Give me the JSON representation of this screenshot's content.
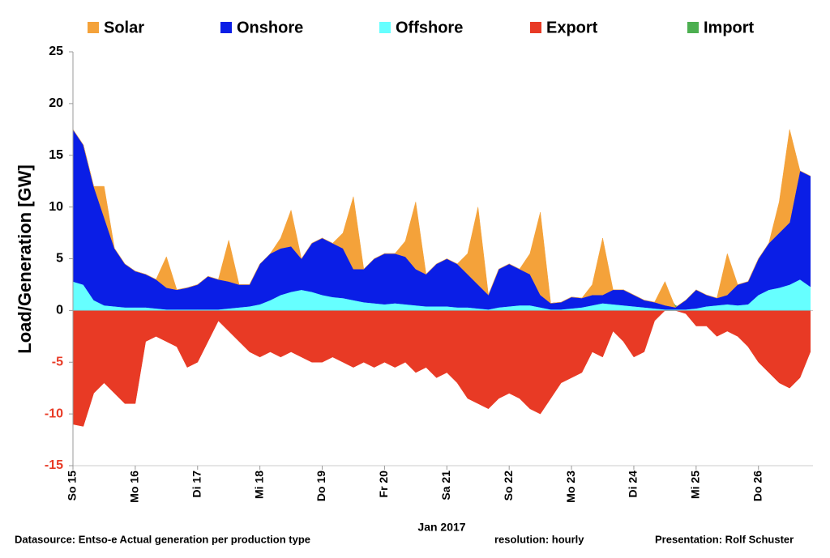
{
  "chart_data": {
    "type": "stacked_area",
    "y_label": "Load/Generation  [GW]",
    "x_label": "Jan 2017",
    "footer": [
      "Datasource: Entso-e  Actual generation per production type",
      "resolution: hourly",
      "Presentation:  Rolf Schuster"
    ],
    "x": [
      0,
      4,
      8,
      12,
      16,
      20,
      24,
      28,
      32,
      36,
      40,
      44,
      48,
      52,
      56,
      60,
      64,
      68,
      72,
      76,
      80,
      84,
      88,
      92,
      96,
      100,
      104,
      108,
      112,
      116,
      120,
      124,
      128,
      132,
      136,
      140,
      144,
      148,
      152,
      156,
      160,
      164,
      168,
      172,
      176,
      180,
      184,
      188,
      192,
      196,
      200,
      204,
      208,
      212,
      216,
      220,
      224,
      228,
      232,
      236,
      240,
      244,
      248,
      252,
      256,
      260,
      264,
      268,
      272,
      276,
      280,
      284
    ],
    "xlim": [
      0,
      285
    ],
    "xticks": [
      {
        "value": 0,
        "label": "So 15"
      },
      {
        "value": 24,
        "label": "Mo 16"
      },
      {
        "value": 48,
        "label": "Di 17"
      },
      {
        "value": 72,
        "label": "Mi 18"
      },
      {
        "value": 96,
        "label": "Do 19"
      },
      {
        "value": 120,
        "label": "Fr 20"
      },
      {
        "value": 144,
        "label": "Sa 21"
      },
      {
        "value": 168,
        "label": "So 22"
      },
      {
        "value": 192,
        "label": "Mo 23"
      },
      {
        "value": 216,
        "label": "Di 24"
      },
      {
        "value": 240,
        "label": "Mi 25"
      },
      {
        "value": 264,
        "label": "Do 26"
      }
    ],
    "ylim": [
      -15,
      25
    ],
    "yticks": [
      25,
      20,
      15,
      10,
      5,
      0,
      -5,
      -10,
      -15
    ],
    "negative_tick_color": "#e83a25",
    "series": [
      {
        "name": "Solar",
        "color": "#f4a23a",
        "stack": "gen",
        "values": [
          0,
          0,
          0,
          3,
          0,
          0,
          0,
          0,
          0,
          3,
          0,
          0,
          0,
          0,
          0,
          4,
          0,
          0,
          0,
          0,
          1,
          3.5,
          0,
          0,
          0,
          0,
          1.5,
          7,
          0,
          0,
          0,
          0,
          1.5,
          6.5,
          0,
          0,
          0,
          0,
          2,
          7.5,
          0,
          0,
          0,
          0,
          2,
          8,
          0,
          0,
          0,
          0,
          1,
          5.5,
          0,
          0,
          0,
          0,
          0,
          2.3,
          0,
          0,
          0,
          0,
          0,
          4,
          0,
          0,
          0,
          0,
          3,
          9,
          0,
          0
        ]
      },
      {
        "name": "Onshore",
        "color": "#0a1ee6",
        "stack": "gen",
        "values": [
          14.7,
          13.5,
          11,
          8.5,
          5.6,
          4.2,
          3.5,
          3.2,
          2.8,
          2.1,
          1.9,
          2.1,
          2.4,
          3.2,
          2.9,
          2.6,
          2.2,
          2.1,
          3.9,
          4.5,
          4.5,
          4.4,
          3,
          4.7,
          5.5,
          5.2,
          4.8,
          3,
          3.2,
          4.3,
          4.9,
          4.8,
          4.6,
          3.5,
          3.1,
          4.1,
          4.6,
          4.2,
          3.2,
          2.3,
          1.4,
          3.7,
          4.1,
          3.5,
          3,
          1.2,
          0.6,
          0.7,
          1.1,
          0.9,
          1,
          0.8,
          1.4,
          1.5,
          1.1,
          0.7,
          0.6,
          0.4,
          0.2,
          0.9,
          1.8,
          1.1,
          0.7,
          0.9,
          2,
          2.2,
          3.5,
          4.5,
          5.3,
          6,
          10.5,
          10.7
        ]
      },
      {
        "name": "Offshore",
        "color": "#66ffff",
        "stack": "gen",
        "values": [
          2.8,
          2.5,
          1,
          0.5,
          0.4,
          0.3,
          0.3,
          0.3,
          0.2,
          0.1,
          0.1,
          0.1,
          0.1,
          0.1,
          0.1,
          0.2,
          0.3,
          0.4,
          0.6,
          1,
          1.5,
          1.8,
          2,
          1.8,
          1.5,
          1.3,
          1.2,
          1,
          0.8,
          0.7,
          0.6,
          0.7,
          0.6,
          0.5,
          0.4,
          0.4,
          0.4,
          0.3,
          0.3,
          0.2,
          0.1,
          0.3,
          0.4,
          0.5,
          0.5,
          0.3,
          0.1,
          0.1,
          0.2,
          0.3,
          0.5,
          0.7,
          0.6,
          0.5,
          0.4,
          0.3,
          0.2,
          0.1,
          0.1,
          0.1,
          0.2,
          0.4,
          0.5,
          0.6,
          0.5,
          0.6,
          1.5,
          2,
          2.2,
          2.5,
          3,
          2.3
        ]
      },
      {
        "name": "Export",
        "color": "#e83a25",
        "stack": "exp",
        "values": [
          -11,
          -11.2,
          -8,
          -7,
          -8,
          -9,
          -9,
          -3,
          -2.5,
          -3,
          -3.5,
          -5.5,
          -5,
          -3,
          -1,
          -2,
          -3,
          -4,
          -4.5,
          -4,
          -4.5,
          -4,
          -4.5,
          -5,
          -5,
          -4.5,
          -5,
          -5.5,
          -5,
          -5.5,
          -5,
          -5.5,
          -5,
          -6,
          -5.5,
          -6.5,
          -6,
          -7,
          -8.5,
          -9,
          -9.5,
          -8.5,
          -8,
          -8.5,
          -9.5,
          -10,
          -8.5,
          -7,
          -6.5,
          -6,
          -4,
          -4.5,
          -2,
          -3,
          -4.5,
          -4,
          -1,
          0,
          0,
          -0.3,
          -1.5,
          -1.5,
          -2.5,
          -2,
          -2.5,
          -3.5,
          -5,
          -6,
          -7,
          -7.5,
          -6.5,
          -4
        ]
      },
      {
        "name": "Import",
        "color": "#4caf50",
        "stack": "imp",
        "values": [
          0,
          0,
          0,
          0,
          0,
          0,
          0,
          0,
          0,
          0,
          0,
          0,
          0,
          0,
          0,
          0,
          0,
          0,
          0,
          0,
          0,
          0,
          0,
          0,
          0,
          0,
          0,
          0,
          0,
          0,
          0,
          0,
          0,
          0,
          0,
          0,
          0,
          0,
          0,
          0,
          0,
          0,
          0,
          0,
          0,
          0,
          0,
          0,
          0,
          0,
          0,
          0,
          0,
          0,
          0,
          0,
          0,
          1.8,
          0.5,
          0,
          0,
          0,
          0,
          0,
          0,
          0,
          0,
          0,
          0,
          0,
          0,
          0
        ]
      }
    ]
  }
}
